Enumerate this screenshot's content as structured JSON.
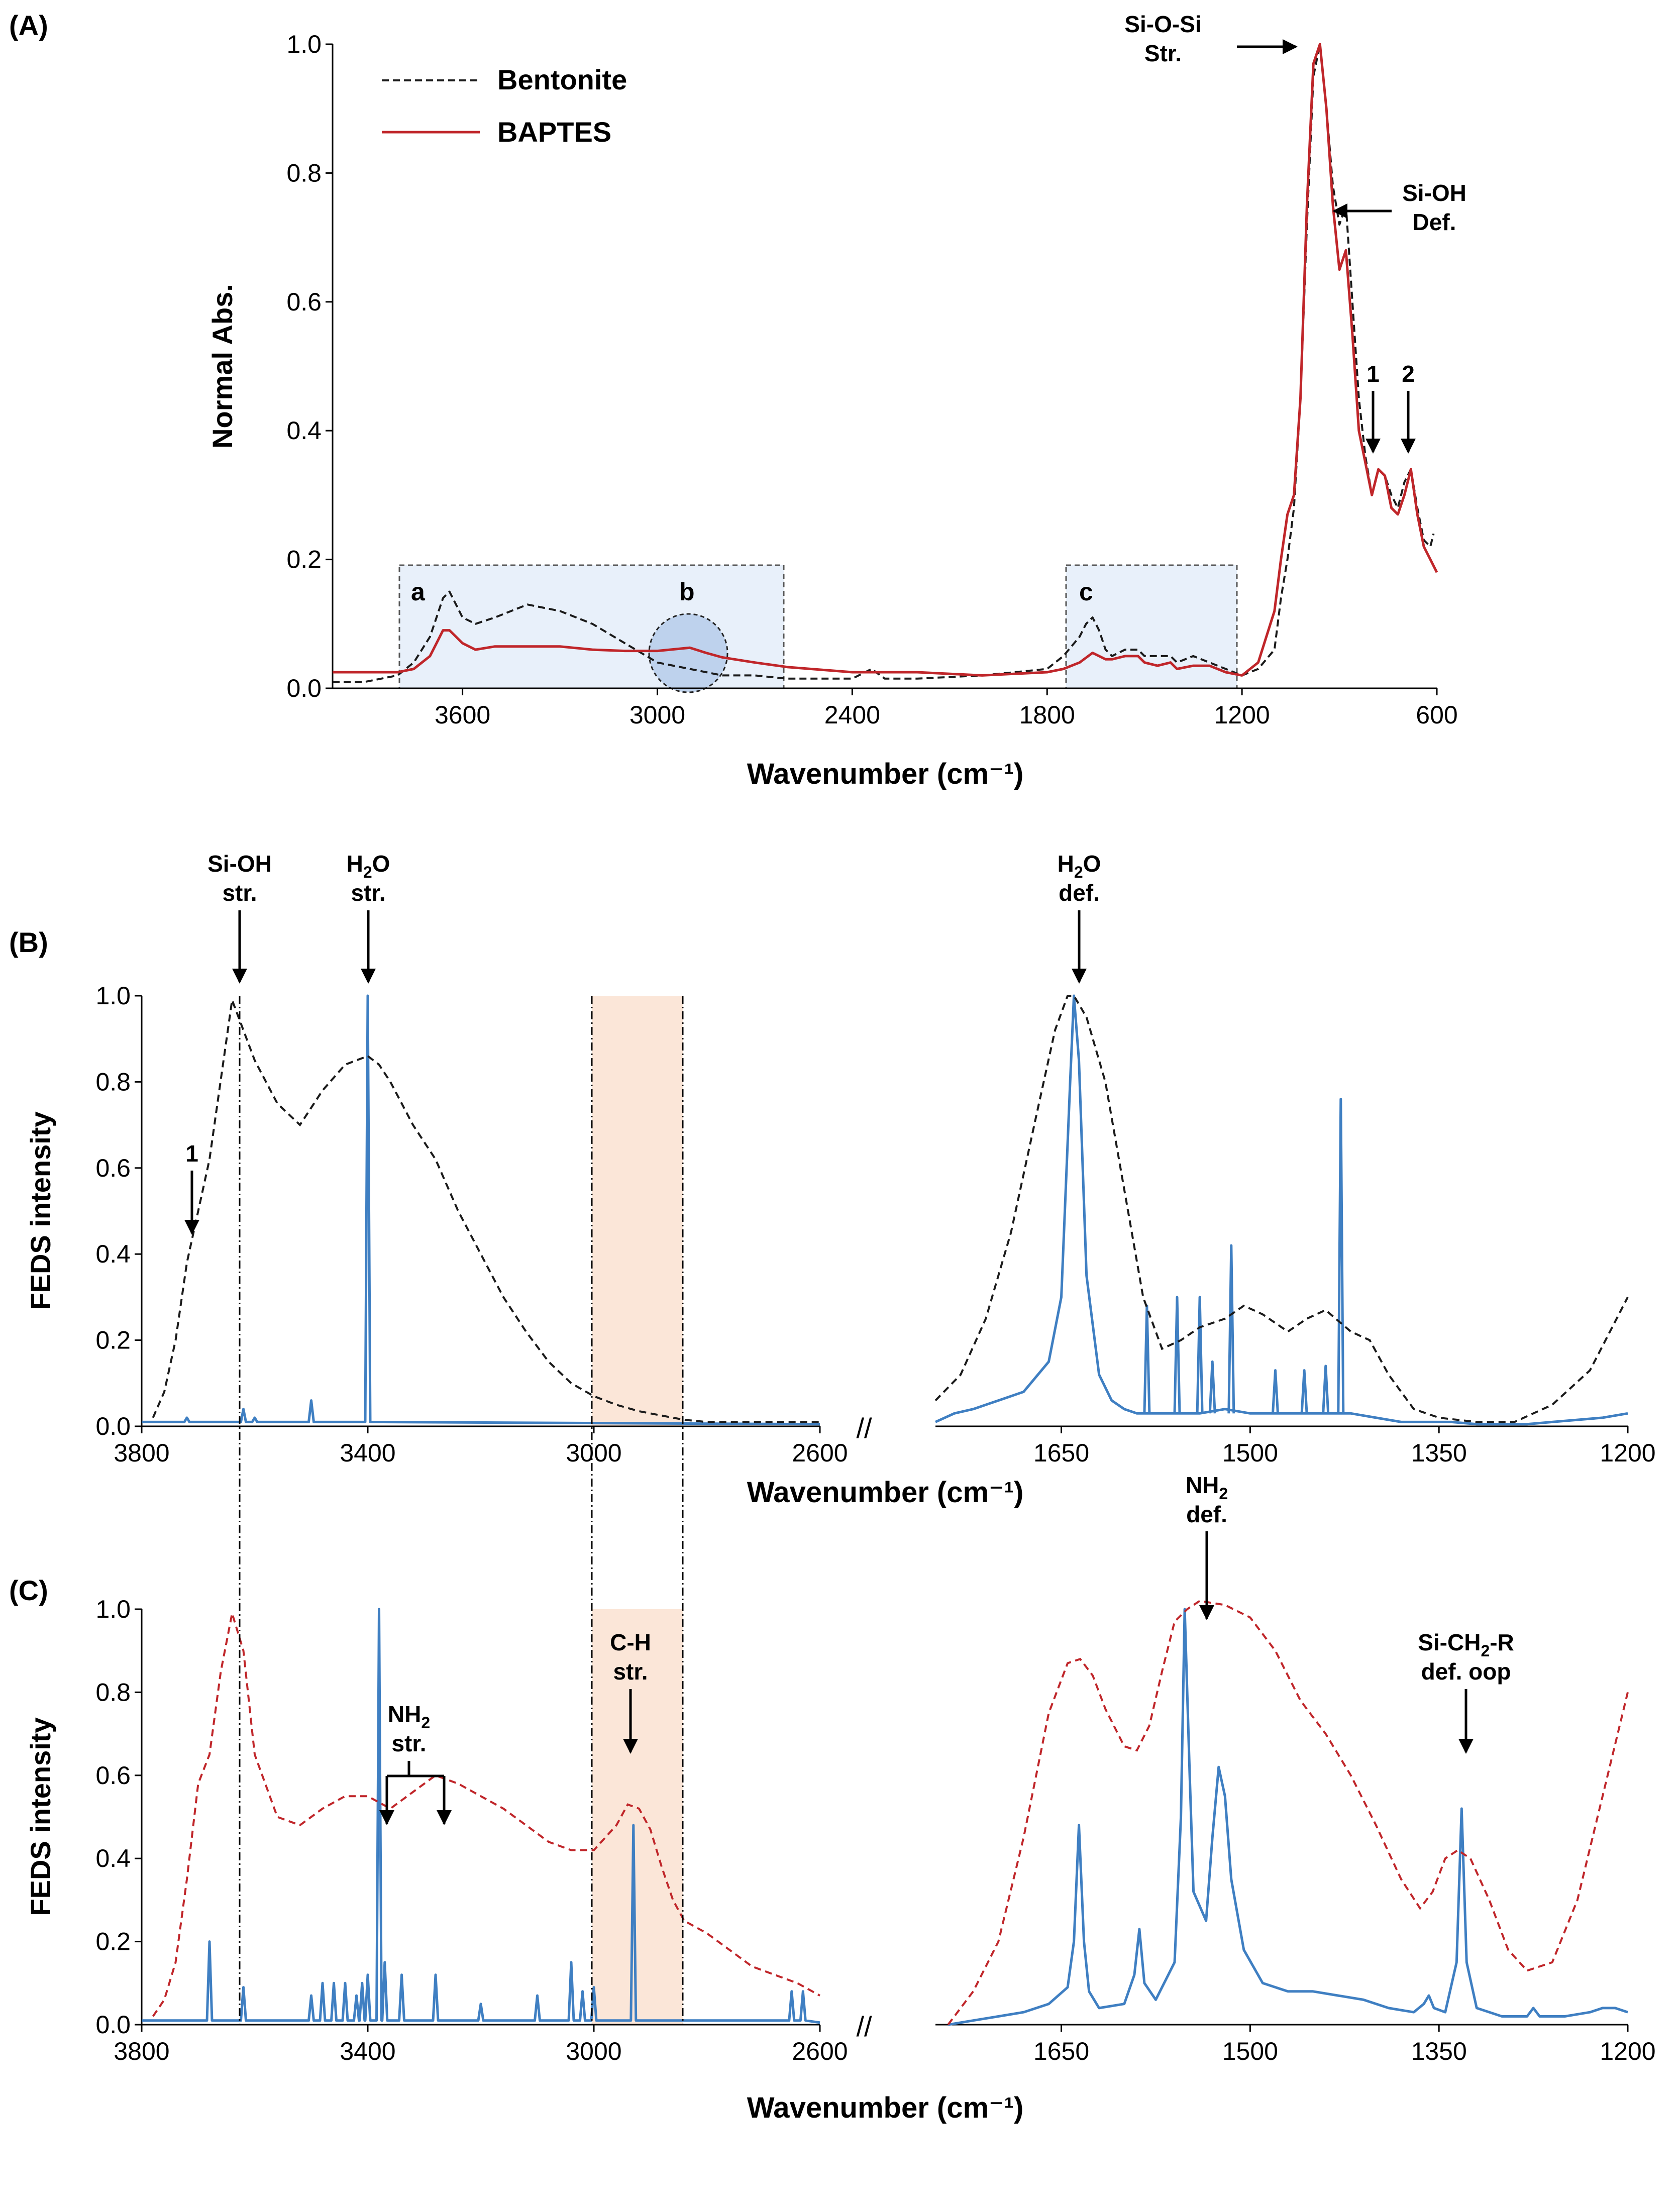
{
  "colors": {
    "bentonite": "#1a1a1a",
    "baptes": "#c0262a",
    "spectrum_blue": "#3f7fc2",
    "box_fill": "#e8f0fa",
    "circle_fill": "#b6cdea",
    "orange_band": "#fbe6d8"
  },
  "chart_data": [
    {
      "panel": "A",
      "panel_label": "(A)",
      "type": "line",
      "xlabel": "Wavenumber (cm⁻¹)",
      "ylabel": "Normal Abs.",
      "xlim": [
        4000,
        600
      ],
      "ylim": [
        0,
        1
      ],
      "xticks": [
        "3600",
        "3000",
        "2400",
        "1800",
        "1200",
        "600"
      ],
      "yticks": [
        "0.0",
        "0.2",
        "0.4",
        "0.6",
        "0.8",
        "1.0"
      ],
      "legend": [
        {
          "label": "Bentonite",
          "style": "dashed",
          "color": "#1a1a1a"
        },
        {
          "label": "BAPTES",
          "style": "solid",
          "color": "#c0262a"
        }
      ],
      "series": [
        {
          "name": "Bentonite",
          "style": "dashed",
          "x": [
            4000,
            3900,
            3800,
            3750,
            3700,
            3680,
            3660,
            3640,
            3620,
            3600,
            3560,
            3500,
            3400,
            3300,
            3200,
            3100,
            3000,
            2900,
            2800,
            2700,
            2600,
            2400,
            2340,
            2300,
            2200,
            2000,
            1800,
            1750,
            1700,
            1680,
            1660,
            1640,
            1620,
            1600,
            1560,
            1520,
            1500,
            1460,
            1420,
            1400,
            1350,
            1300,
            1250,
            1200,
            1150,
            1100,
            1080,
            1060,
            1040,
            1020,
            1000,
            980,
            960,
            940,
            920,
            900,
            880,
            860,
            840,
            820,
            800,
            780,
            760,
            740,
            720,
            700,
            680,
            660,
            640,
            620,
            610
          ],
          "y": [
            0.01,
            0.01,
            0.02,
            0.04,
            0.08,
            0.11,
            0.14,
            0.15,
            0.13,
            0.11,
            0.1,
            0.11,
            0.13,
            0.12,
            0.1,
            0.07,
            0.04,
            0.03,
            0.02,
            0.02,
            0.015,
            0.015,
            0.03,
            0.015,
            0.015,
            0.02,
            0.03,
            0.05,
            0.08,
            0.1,
            0.11,
            0.09,
            0.06,
            0.05,
            0.06,
            0.06,
            0.05,
            0.05,
            0.05,
            0.04,
            0.05,
            0.04,
            0.03,
            0.02,
            0.03,
            0.06,
            0.14,
            0.2,
            0.28,
            0.45,
            0.72,
            0.95,
            1.0,
            0.9,
            0.78,
            0.72,
            0.75,
            0.6,
            0.45,
            0.36,
            0.3,
            0.34,
            0.33,
            0.3,
            0.28,
            0.32,
            0.34,
            0.28,
            0.23,
            0.22,
            0.24
          ]
        },
        {
          "name": "BAPTES",
          "style": "solid",
          "x": [
            4000,
            3900,
            3800,
            3750,
            3700,
            3680,
            3660,
            3640,
            3620,
            3600,
            3560,
            3500,
            3400,
            3300,
            3200,
            3100,
            3000,
            2900,
            2850,
            2800,
            2700,
            2600,
            2400,
            2200,
            2000,
            1800,
            1750,
            1700,
            1660,
            1640,
            1620,
            1600,
            1560,
            1520,
            1500,
            1460,
            1420,
            1400,
            1350,
            1300,
            1250,
            1200,
            1150,
            1100,
            1080,
            1060,
            1040,
            1020,
            1000,
            980,
            960,
            940,
            920,
            900,
            880,
            860,
            840,
            820,
            800,
            780,
            760,
            740,
            720,
            700,
            680,
            660,
            640,
            620,
            600
          ],
          "y": [
            0.025,
            0.025,
            0.025,
            0.03,
            0.05,
            0.07,
            0.09,
            0.09,
            0.08,
            0.07,
            0.06,
            0.065,
            0.065,
            0.065,
            0.06,
            0.058,
            0.058,
            0.063,
            0.055,
            0.048,
            0.04,
            0.033,
            0.025,
            0.025,
            0.02,
            0.025,
            0.03,
            0.04,
            0.055,
            0.05,
            0.045,
            0.045,
            0.05,
            0.05,
            0.04,
            0.035,
            0.04,
            0.03,
            0.035,
            0.035,
            0.025,
            0.02,
            0.04,
            0.12,
            0.2,
            0.27,
            0.3,
            0.45,
            0.75,
            0.97,
            1.0,
            0.9,
            0.75,
            0.65,
            0.68,
            0.55,
            0.4,
            0.35,
            0.3,
            0.34,
            0.33,
            0.28,
            0.27,
            0.3,
            0.34,
            0.27,
            0.22,
            0.2,
            0.18
          ]
        }
      ],
      "annotations": [
        {
          "text": "Si-O-Si",
          "text2": "Str."
        },
        {
          "text": "Si-OH",
          "text2": "Def."
        },
        {
          "text": "1"
        },
        {
          "text": "2"
        },
        {
          "text": "a"
        },
        {
          "text": "b"
        },
        {
          "text": "c"
        }
      ]
    },
    {
      "panel": "B",
      "panel_label": "(B)",
      "type": "line",
      "ylabel": "FEDS intensity",
      "xlabel": "Wavenumber (cm⁻¹)",
      "left": {
        "xlim": [
          3800,
          2600
        ],
        "xticks": [
          "3800",
          "3400",
          "3000",
          "2600"
        ]
      },
      "right": {
        "xlim": [
          1750,
          1200
        ],
        "xticks": [
          "1650",
          "1500",
          "1350",
          "1200"
        ]
      },
      "ylim": [
        0,
        1
      ],
      "yticks": [
        "0.0",
        "0.2",
        "0.4",
        "0.6",
        "0.8",
        "1.0"
      ],
      "break_mark": "//",
      "dashed_left": {
        "x": [
          3780,
          3760,
          3740,
          3720,
          3700,
          3680,
          3640,
          3600,
          3560,
          3520,
          3480,
          3440,
          3400,
          3380,
          3360,
          3320,
          3280,
          3240,
          3200,
          3160,
          3120,
          3080,
          3040,
          3000,
          2960,
          2920,
          2880,
          2840,
          2800,
          2760,
          2700,
          2600
        ],
        "y": [
          0.02,
          0.08,
          0.2,
          0.38,
          0.5,
          0.62,
          0.99,
          0.85,
          0.75,
          0.7,
          0.78,
          0.84,
          0.86,
          0.84,
          0.8,
          0.7,
          0.62,
          0.5,
          0.4,
          0.3,
          0.22,
          0.15,
          0.1,
          0.07,
          0.05,
          0.035,
          0.025,
          0.015,
          0.01,
          0.01,
          0.01,
          0.01
        ]
      },
      "sticks_left": [
        {
          "x": 3620,
          "h": 0.04
        },
        {
          "x": 3600,
          "h": 0.02
        },
        {
          "x": 3500,
          "h": 0.06
        },
        {
          "x": 3400,
          "h": 1.0
        },
        {
          "x": 3720,
          "h": 0.02
        }
      ],
      "dashed_right": {
        "x": [
          1750,
          1730,
          1710,
          1690,
          1670,
          1655,
          1645,
          1640,
          1630,
          1615,
          1600,
          1585,
          1570,
          1555,
          1540,
          1520,
          1505,
          1490,
          1470,
          1455,
          1440,
          1420,
          1405,
          1390,
          1370,
          1350,
          1320,
          1290,
          1260,
          1230,
          1200
        ],
        "y": [
          0.06,
          0.12,
          0.25,
          0.45,
          0.72,
          0.92,
          1.0,
          1.0,
          0.95,
          0.8,
          0.55,
          0.3,
          0.18,
          0.2,
          0.23,
          0.25,
          0.28,
          0.26,
          0.22,
          0.25,
          0.27,
          0.22,
          0.2,
          0.12,
          0.04,
          0.02,
          0.01,
          0.01,
          0.05,
          0.13,
          0.3
        ]
      },
      "blue_right": {
        "x": [
          1750,
          1735,
          1720,
          1700,
          1680,
          1660,
          1650,
          1643,
          1640,
          1636,
          1630,
          1620,
          1610,
          1600,
          1590,
          1580,
          1560,
          1540,
          1520,
          1500,
          1480,
          1460,
          1440,
          1420,
          1400,
          1380,
          1360,
          1340,
          1320,
          1300,
          1280,
          1260,
          1240,
          1220,
          1200
        ],
        "y": [
          0.01,
          0.03,
          0.04,
          0.06,
          0.08,
          0.15,
          0.3,
          0.8,
          1.0,
          0.85,
          0.35,
          0.12,
          0.06,
          0.04,
          0.03,
          0.03,
          0.03,
          0.03,
          0.04,
          0.03,
          0.03,
          0.03,
          0.03,
          0.03,
          0.02,
          0.01,
          0.01,
          0.01,
          0.005,
          0.005,
          0.005,
          0.01,
          0.015,
          0.02,
          0.03
        ]
      },
      "sticks_right": [
        {
          "x": 1582,
          "h": 0.28
        },
        {
          "x": 1558,
          "h": 0.3
        },
        {
          "x": 1540,
          "h": 0.3
        },
        {
          "x": 1530,
          "h": 0.15
        },
        {
          "x": 1515,
          "h": 0.42
        },
        {
          "x": 1480,
          "h": 0.13
        },
        {
          "x": 1457,
          "h": 0.13
        },
        {
          "x": 1440,
          "h": 0.14
        },
        {
          "x": 1428,
          "h": 0.76
        }
      ],
      "annotations": [
        {
          "text": "Si-OH",
          "text2": "str."
        },
        {
          "text": "H",
          "sub": "2",
          "tail": "O",
          "text2": "str."
        },
        {
          "text": "H",
          "sub": "2",
          "tail": "O",
          "text2": "def."
        },
        {
          "text": "1"
        }
      ]
    },
    {
      "panel": "C",
      "panel_label": "(C)",
      "type": "line",
      "ylabel": "FEDS intensity",
      "xlabel": "Wavenumber (cm⁻¹)",
      "left": {
        "xlim": [
          3800,
          2600
        ],
        "xticks": [
          "3800",
          "3400",
          "3000",
          "2600"
        ]
      },
      "right": {
        "xlim": [
          1750,
          1200
        ],
        "xticks": [
          "1650",
          "1500",
          "1350",
          "1200"
        ]
      },
      "ylim": [
        0,
        1
      ],
      "yticks": [
        "0.0",
        "0.2",
        "0.4",
        "0.6",
        "0.8",
        "1.0"
      ],
      "break_mark": "//",
      "dashed_left": {
        "x": [
          3780,
          3760,
          3740,
          3720,
          3700,
          3680,
          3660,
          3640,
          3620,
          3600,
          3560,
          3520,
          3480,
          3440,
          3400,
          3360,
          3320,
          3280,
          3240,
          3200,
          3160,
          3120,
          3080,
          3040,
          3000,
          2960,
          2940,
          2920,
          2900,
          2880,
          2860,
          2840,
          2800,
          2760,
          2720,
          2680,
          2640,
          2600
        ],
        "y": [
          0.02,
          0.06,
          0.15,
          0.35,
          0.58,
          0.65,
          0.85,
          0.99,
          0.9,
          0.65,
          0.5,
          0.48,
          0.52,
          0.55,
          0.55,
          0.52,
          0.56,
          0.6,
          0.58,
          0.55,
          0.52,
          0.48,
          0.44,
          0.42,
          0.42,
          0.48,
          0.53,
          0.52,
          0.47,
          0.38,
          0.3,
          0.25,
          0.22,
          0.18,
          0.14,
          0.12,
          0.1,
          0.07
        ]
      },
      "sticks_left": [
        {
          "x": 3680,
          "h": 0.2
        },
        {
          "x": 3620,
          "h": 0.09
        },
        {
          "x": 3500,
          "h": 0.07
        },
        {
          "x": 3480,
          "h": 0.1
        },
        {
          "x": 3460,
          "h": 0.1
        },
        {
          "x": 3440,
          "h": 0.1
        },
        {
          "x": 3420,
          "h": 0.07
        },
        {
          "x": 3410,
          "h": 0.1
        },
        {
          "x": 3400,
          "h": 0.12
        },
        {
          "x": 3380,
          "h": 1.0
        },
        {
          "x": 3370,
          "h": 0.15
        },
        {
          "x": 3340,
          "h": 0.12
        },
        {
          "x": 3280,
          "h": 0.12
        },
        {
          "x": 3200,
          "h": 0.05
        },
        {
          "x": 3100,
          "h": 0.07
        },
        {
          "x": 3040,
          "h": 0.15
        },
        {
          "x": 3020,
          "h": 0.08
        },
        {
          "x": 3000,
          "h": 0.09
        },
        {
          "x": 2930,
          "h": 0.48
        },
        {
          "x": 2650,
          "h": 0.08
        },
        {
          "x": 2630,
          "h": 0.08
        }
      ],
      "dashed_right": {
        "x": [
          1740,
          1720,
          1700,
          1680,
          1660,
          1645,
          1635,
          1625,
          1615,
          1600,
          1590,
          1580,
          1570,
          1560,
          1550,
          1540,
          1520,
          1500,
          1480,
          1460,
          1440,
          1420,
          1400,
          1380,
          1365,
          1355,
          1345,
          1335,
          1325,
          1310,
          1295,
          1280,
          1260,
          1240,
          1220,
          1200
        ],
        "y": [
          0.0,
          0.08,
          0.2,
          0.45,
          0.75,
          0.87,
          0.88,
          0.84,
          0.76,
          0.67,
          0.66,
          0.72,
          0.85,
          0.97,
          1.0,
          1.02,
          1.01,
          0.98,
          0.9,
          0.78,
          0.7,
          0.6,
          0.48,
          0.35,
          0.28,
          0.32,
          0.4,
          0.42,
          0.4,
          0.3,
          0.18,
          0.13,
          0.15,
          0.3,
          0.55,
          0.8
        ]
      },
      "blue_right": {
        "x": [
          1740,
          1720,
          1700,
          1680,
          1660,
          1645,
          1640,
          1636,
          1632,
          1628,
          1620,
          1600,
          1592,
          1588,
          1584,
          1575,
          1560,
          1555,
          1552,
          1548,
          1545,
          1535,
          1530,
          1525,
          1520,
          1515,
          1505,
          1490,
          1470,
          1450,
          1430,
          1410,
          1390,
          1370,
          1362,
          1358,
          1354,
          1345,
          1336,
          1332,
          1328,
          1320,
          1300,
          1280,
          1275,
          1270,
          1250,
          1230,
          1220,
          1210,
          1200
        ],
        "y": [
          0.0,
          0.01,
          0.02,
          0.03,
          0.05,
          0.09,
          0.2,
          0.48,
          0.2,
          0.08,
          0.04,
          0.05,
          0.12,
          0.23,
          0.1,
          0.06,
          0.15,
          0.5,
          1.0,
          0.6,
          0.32,
          0.25,
          0.45,
          0.62,
          0.55,
          0.35,
          0.18,
          0.1,
          0.08,
          0.08,
          0.07,
          0.06,
          0.04,
          0.03,
          0.05,
          0.07,
          0.04,
          0.03,
          0.15,
          0.52,
          0.15,
          0.04,
          0.02,
          0.02,
          0.04,
          0.02,
          0.02,
          0.03,
          0.04,
          0.04,
          0.03
        ]
      },
      "annotations": [
        {
          "text": "NH",
          "sub": "2",
          "text2": "str."
        },
        {
          "text": "C-H",
          "text2": "str."
        },
        {
          "text": "NH",
          "sub": "2",
          "text2": "def."
        },
        {
          "text": "Si-CH",
          "sub": "2",
          "tail": "-R",
          "text2": "def. oop"
        }
      ]
    }
  ]
}
